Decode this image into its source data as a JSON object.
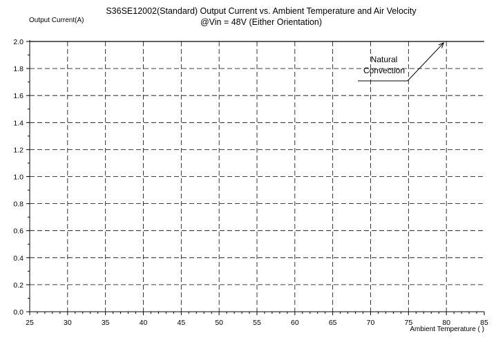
{
  "chart_data": {
    "type": "line",
    "title": "S36SE12002(Standard)  Output Current vs. Ambient Temperature and Air Velocity",
    "subtitle": "@Vin = 48V (Either Orientation)",
    "ylabel": "Output Current(A)",
    "xlabel": "Ambient Temperature (   )",
    "xlim": [
      25,
      85
    ],
    "ylim": [
      0.0,
      2.0
    ],
    "x_ticks": [
      25,
      30,
      35,
      40,
      45,
      50,
      55,
      60,
      65,
      70,
      75,
      80,
      85
    ],
    "x_tick_labels": [
      "25",
      "30",
      "35",
      "40",
      "45",
      "50",
      "55",
      "60",
      "65",
      "70",
      "75",
      "80",
      "85"
    ],
    "y_ticks": [
      0.0,
      0.2,
      0.4,
      0.6,
      0.8,
      1.0,
      1.2,
      1.4,
      1.6,
      1.8,
      2.0
    ],
    "y_tick_labels": [
      "0.0",
      "0.2",
      "0.4",
      "0.6",
      "0.8",
      "1.0",
      "1.2",
      "1.4",
      "1.6",
      "1.8",
      "2.0"
    ],
    "grid": true,
    "series": [
      {
        "name": "Natural Convection",
        "x": [
          25,
          85
        ],
        "y": [
          2.0,
          2.0
        ]
      }
    ],
    "annotations": [
      {
        "text_lines": [
          "Natural",
          "Convection"
        ],
        "points_to": {
          "x": 80,
          "y": 2.0
        }
      }
    ]
  }
}
